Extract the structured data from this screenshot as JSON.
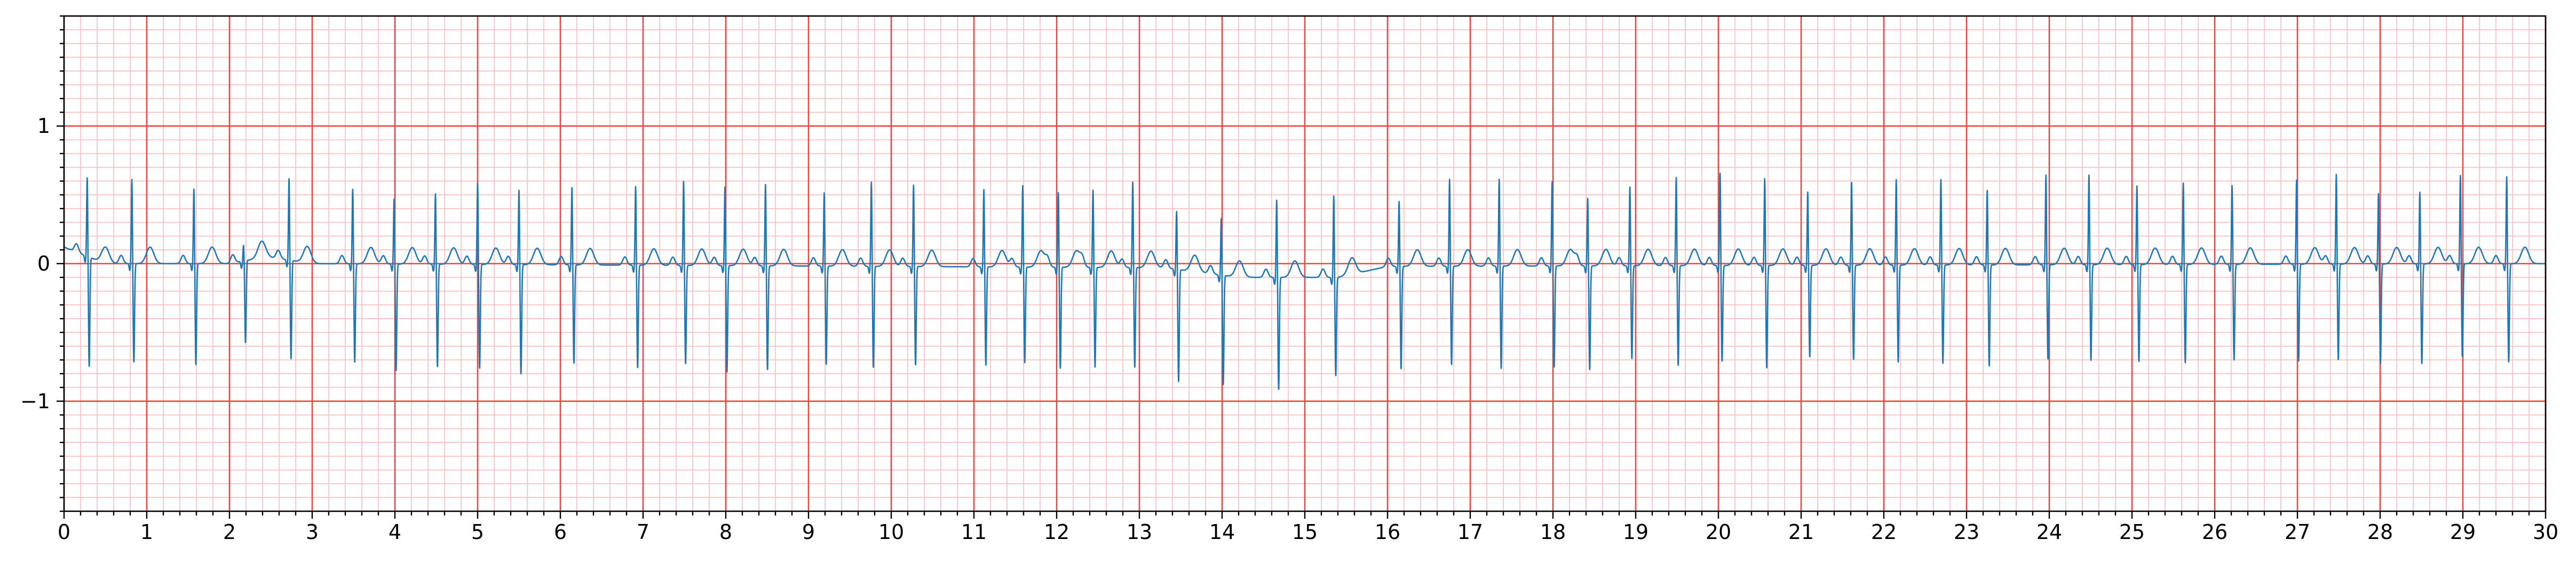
{
  "chart_data": {
    "type": "line",
    "title": "",
    "xlabel": "",
    "ylabel": "",
    "xlim": [
      0,
      30
    ],
    "ylim": [
      -1.8,
      1.8
    ],
    "x_ticks": [
      0,
      1,
      2,
      3,
      4,
      5,
      6,
      7,
      8,
      9,
      10,
      11,
      12,
      13,
      14,
      15,
      16,
      17,
      18,
      19,
      20,
      21,
      22,
      23,
      24,
      25,
      26,
      27,
      28,
      29,
      30
    ],
    "x_tick_labels": [
      "0",
      "1",
      "2",
      "3",
      "4",
      "5",
      "6",
      "7",
      "8",
      "9",
      "10",
      "11",
      "12",
      "13",
      "14",
      "15",
      "16",
      "17",
      "18",
      "19",
      "20",
      "21",
      "22",
      "23",
      "24",
      "25",
      "26",
      "27",
      "28",
      "29",
      "30"
    ],
    "y_ticks": [
      -1,
      0,
      1
    ],
    "y_tick_labels": [
      "−1",
      "0",
      "1"
    ],
    "grid": {
      "major": true,
      "minor": true,
      "major_x_step": 1,
      "minor_x_step": 0.2,
      "major_y_step": 1,
      "minor_y_step": 0.1
    },
    "colors": {
      "line": "#1f77b4",
      "major_grid": "#ee4444",
      "minor_grid": "#fbbcbc",
      "background": "#ffffff"
    },
    "signal": "single-lead ECG, narrow-complex regular rhythm, approx 2.2 beats per second",
    "r_peaks": [
      {
        "t": 0.28,
        "r": 0.58,
        "s": -0.8
      },
      {
        "t": 0.82,
        "r": 0.62,
        "s": -0.72
      },
      {
        "t": 1.57,
        "r": 0.55,
        "s": -0.74
      },
      {
        "t": 2.17,
        "r": 0.12,
        "s": -0.6
      },
      {
        "t": 2.72,
        "r": 0.6,
        "s": -0.72
      },
      {
        "t": 3.49,
        "r": 0.55,
        "s": -0.72
      },
      {
        "t": 3.99,
        "r": 0.48,
        "s": -0.78
      },
      {
        "t": 4.49,
        "r": 0.52,
        "s": -0.75
      },
      {
        "t": 5.0,
        "r": 0.6,
        "s": -0.76
      },
      {
        "t": 5.5,
        "r": 0.55,
        "s": -0.8
      },
      {
        "t": 6.14,
        "r": 0.57,
        "s": -0.72
      },
      {
        "t": 6.91,
        "r": 0.58,
        "s": -0.75
      },
      {
        "t": 7.49,
        "r": 0.62,
        "s": -0.72
      },
      {
        "t": 7.99,
        "r": 0.58,
        "s": -0.78
      },
      {
        "t": 8.48,
        "r": 0.6,
        "s": -0.76
      },
      {
        "t": 9.19,
        "r": 0.54,
        "s": -0.72
      },
      {
        "t": 9.76,
        "r": 0.62,
        "s": -0.74
      },
      {
        "t": 10.27,
        "r": 0.6,
        "s": -0.72
      },
      {
        "t": 11.12,
        "r": 0.57,
        "s": -0.72
      },
      {
        "t": 11.59,
        "r": 0.6,
        "s": -0.7
      },
      {
        "t": 12.02,
        "r": 0.55,
        "s": -0.74
      },
      {
        "t": 12.44,
        "r": 0.57,
        "s": -0.73
      },
      {
        "t": 12.92,
        "r": 0.63,
        "s": -0.73
      },
      {
        "t": 13.45,
        "r": 0.43,
        "s": -0.82
      },
      {
        "t": 13.99,
        "r": 0.42,
        "s": -0.8
      },
      {
        "t": 14.66,
        "r": 0.57,
        "s": -0.82
      },
      {
        "t": 15.35,
        "r": 0.6,
        "s": -0.72
      },
      {
        "t": 16.14,
        "r": 0.48,
        "s": -0.75
      },
      {
        "t": 16.75,
        "r": 0.64,
        "s": -0.72
      },
      {
        "t": 17.35,
        "r": 0.64,
        "s": -0.75
      },
      {
        "t": 17.99,
        "r": 0.62,
        "s": -0.74
      },
      {
        "t": 18.42,
        "r": 0.5,
        "s": -0.76
      },
      {
        "t": 18.93,
        "r": 0.58,
        "s": -0.68
      },
      {
        "t": 19.49,
        "r": 0.65,
        "s": -0.73
      },
      {
        "t": 20.02,
        "r": 0.68,
        "s": -0.7
      },
      {
        "t": 20.56,
        "r": 0.64,
        "s": -0.75
      },
      {
        "t": 21.08,
        "r": 0.54,
        "s": -0.67
      },
      {
        "t": 21.61,
        "r": 0.61,
        "s": -0.69
      },
      {
        "t": 22.15,
        "r": 0.63,
        "s": -0.71
      },
      {
        "t": 22.69,
        "r": 0.63,
        "s": -0.72
      },
      {
        "t": 23.25,
        "r": 0.55,
        "s": -0.74
      },
      {
        "t": 23.96,
        "r": 0.66,
        "s": -0.69
      },
      {
        "t": 24.48,
        "r": 0.66,
        "s": -0.7
      },
      {
        "t": 25.06,
        "r": 0.58,
        "s": -0.71
      },
      {
        "t": 25.62,
        "r": 0.6,
        "s": -0.72
      },
      {
        "t": 26.21,
        "r": 0.58,
        "s": -0.7
      },
      {
        "t": 26.99,
        "r": 0.62,
        "s": -0.71
      },
      {
        "t": 27.47,
        "r": 0.66,
        "s": -0.7
      },
      {
        "t": 27.98,
        "r": 0.52,
        "s": -0.73
      },
      {
        "t": 28.48,
        "r": 0.53,
        "s": -0.73
      },
      {
        "t": 28.97,
        "r": 0.65,
        "s": -0.68
      },
      {
        "t": 29.53,
        "r": 0.64,
        "s": -0.72
      }
    ],
    "baseline_wander": [
      {
        "t": 0,
        "v": 0.12
      },
      {
        "t": 0.5,
        "v": 0.0
      },
      {
        "t": 2.0,
        "v": 0.0
      },
      {
        "t": 2.45,
        "v": 0.05
      },
      {
        "t": 3.0,
        "v": 0.0
      },
      {
        "t": 13.3,
        "v": -0.03
      },
      {
        "t": 14.2,
        "v": -0.1
      },
      {
        "t": 15.4,
        "v": -0.1
      },
      {
        "t": 16.0,
        "v": -0.02
      },
      {
        "t": 30,
        "v": 0.0
      }
    ]
  }
}
